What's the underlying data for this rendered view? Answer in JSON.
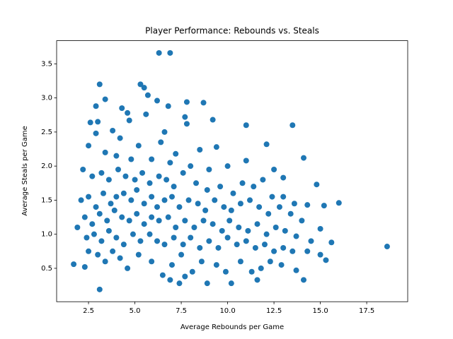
{
  "chart_data": {
    "type": "scatter",
    "title": "Player Performance: Rebounds vs. Steals",
    "xlabel": "Average Rebounds per Game",
    "ylabel": "Average Steals per Game",
    "color": "#1f77b4",
    "xlim": [
      0.78,
      19.71
    ],
    "ylim": [
      0.01,
      3.84
    ],
    "xticks": [
      2.5,
      {
        "value": 5,
        "label": "5.0"
      },
      7.5,
      {
        "value": 10,
        "label": "10.0"
      },
      12.5,
      {
        "value": 15,
        "label": "15.0"
      },
      17.5
    ],
    "yticks": [
      0.5,
      {
        "value": 1,
        "label": "1.0"
      },
      1.5,
      {
        "value": 2,
        "label": "2.0"
      },
      2.5,
      {
        "value": 3,
        "label": "3.0"
      },
      3.5
    ],
    "x": [
      18.6,
      6.3,
      6.9,
      3.1,
      1.7,
      16.0,
      15.3,
      14.1,
      13.5,
      14.1,
      11.0,
      12.1,
      9.2,
      8.7,
      7.8,
      3.1,
      5.3,
      3.4,
      5.5,
      5.7,
      6.2,
      2.9,
      4.3,
      6.8,
      4.6,
      5.6,
      7.7,
      2.6,
      3.0,
      4.7,
      6.6,
      7.8,
      2.9,
      3.8,
      4.2,
      5.2,
      6.4,
      7.2,
      8.5,
      9.4,
      2.5,
      3.4,
      4.0,
      4.8,
      5.9,
      6.9,
      8.0,
      9.0,
      10.0,
      11.0,
      12.5,
      13.0,
      2.2,
      2.7,
      3.2,
      3.6,
      4.1,
      4.5,
      5.0,
      5.4,
      5.8,
      6.3,
      6.7,
      7.1,
      7.6,
      8.3,
      8.9,
      9.6,
      10.3,
      10.8,
      11.4,
      11.9,
      12.4,
      13.0,
      13.6,
      14.3,
      14.8,
      15.2,
      2.1,
      2.5,
      2.9,
      3.3,
      3.7,
      4.0,
      4.4,
      4.8,
      5.1,
      5.5,
      5.9,
      6.2,
      6.6,
      7.0,
      7.4,
      7.9,
      8.4,
      8.8,
      9.3,
      9.8,
      10.2,
      10.7,
      11.2,
      11.7,
      12.2,
      12.8,
      13.4,
      14.0,
      15.0,
      15.6,
      2.3,
      2.7,
      3.1,
      3.5,
      3.9,
      4.3,
      4.7,
      5.1,
      5.5,
      5.9,
      6.3,
      6.8,
      7.2,
      7.7,
      8.2,
      8.7,
      9.2,
      9.7,
      10.1,
      10.6,
      11.1,
      11.6,
      12.1,
      12.6,
      13.1,
      13.7,
      14.5,
      1.9,
      2.4,
      2.8,
      3.2,
      3.6,
      4.0,
      4.4,
      4.9,
      5.3,
      5.8,
      6.2,
      6.6,
      7.1,
      7.6,
      8.0,
      8.5,
      9.0,
      9.5,
      10.0,
      10.5,
      11.0,
      11.5,
      12.0,
      12.5,
      13.0,
      13.5,
      14.3,
      15.0,
      2.5,
      3.0,
      3.4,
      3.8,
      4.2,
      4.6,
      5.2,
      5.9,
      6.5,
      7.0,
      7.5,
      7.7,
      8.1,
      8.6,
      8.9,
      9.4,
      9.9,
      10.2,
      10.7,
      11.3,
      11.8,
      12.3,
      12.9,
      13.7,
      2.3,
      7.4,
      6.9,
      11.6
    ],
    "y": [
      0.82,
      3.66,
      3.66,
      0.19,
      0.56,
      1.46,
      0.62,
      0.33,
      2.6,
      2.12,
      2.6,
      2.32,
      2.68,
      2.93,
      2.94,
      3.2,
      3.2,
      2.98,
      3.15,
      3.04,
      2.96,
      2.88,
      2.85,
      2.88,
      2.78,
      2.76,
      2.72,
      2.64,
      2.65,
      2.67,
      2.5,
      2.62,
      2.48,
      2.52,
      2.41,
      2.3,
      2.35,
      2.18,
      2.24,
      2.28,
      2.3,
      2.2,
      2.15,
      2.1,
      2.1,
      2.05,
      2.0,
      1.95,
      2.0,
      2.08,
      1.95,
      1.83,
      1.95,
      1.85,
      1.9,
      1.8,
      1.95,
      1.85,
      1.8,
      1.9,
      1.75,
      1.85,
      1.8,
      1.7,
      1.9,
      1.75,
      1.65,
      1.7,
      1.6,
      1.75,
      1.7,
      1.8,
      1.55,
      1.55,
      1.45,
      1.43,
      1.73,
      1.42,
      1.5,
      1.55,
      1.4,
      1.6,
      1.45,
      1.55,
      1.6,
      1.5,
      1.65,
      1.45,
      1.55,
      1.4,
      1.5,
      1.55,
      1.4,
      1.5,
      1.45,
      1.35,
      1.5,
      1.4,
      1.35,
      1.45,
      1.5,
      1.4,
      1.3,
      1.4,
      1.3,
      1.2,
      1.08,
      0.88,
      1.25,
      1.15,
      1.3,
      1.2,
      1.35,
      1.25,
      1.2,
      1.3,
      1.15,
      1.25,
      1.2,
      1.25,
      1.1,
      1.2,
      1.1,
      1.2,
      1.15,
      1.05,
      1.2,
      1.1,
      1.05,
      1.15,
      1.0,
      1.1,
      1.05,
      0.97,
      0.9,
      1.1,
      0.95,
      1.0,
      0.9,
      1.05,
      0.95,
      0.85,
      1.0,
      0.9,
      1.0,
      0.9,
      0.85,
      0.95,
      0.85,
      0.95,
      0.8,
      0.9,
      0.8,
      0.95,
      0.85,
      0.9,
      0.8,
      0.85,
      0.75,
      0.8,
      0.75,
      0.75,
      0.7,
      0.75,
      0.7,
      0.6,
      0.75,
      0.65,
      0.5,
      0.7,
      0.6,
      0.4,
      0.55,
      0.7,
      0.38,
      0.45,
      0.6,
      0.28,
      0.55,
      0.45,
      0.28,
      0.6,
      0.45,
      0.5,
      0.6,
      0.55,
      0.47,
      0.52,
      0.28,
      0.33,
      0.33
    ]
  }
}
